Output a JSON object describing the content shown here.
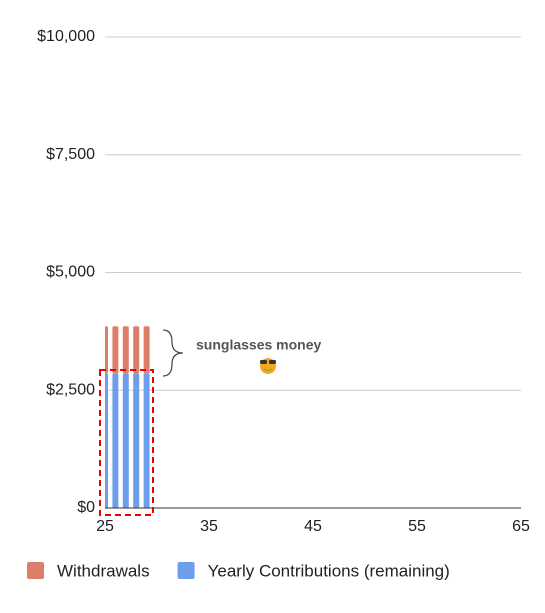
{
  "chart_data": {
    "type": "bar",
    "stacked": true,
    "annotation": "sunglasses money",
    "x": [
      25,
      26,
      27,
      28,
      29
    ],
    "series": [
      {
        "name": "Withdrawals",
        "color": "#dd7e6b",
        "values": [
          1000,
          1000,
          1000,
          1000,
          1000
        ]
      },
      {
        "name": "Yearly Contributions (remaining)",
        "color": "#6d9eeb",
        "values": [
          2860,
          2860,
          2860,
          2860,
          2860
        ]
      }
    ],
    "xlim": [
      25,
      65
    ],
    "xticks": [
      25,
      35,
      45,
      55,
      65
    ],
    "ylim": [
      0,
      10000
    ],
    "yticks": [
      {
        "value": 0,
        "label": "$0"
      },
      {
        "value": 2500,
        "label": "$2,500"
      },
      {
        "value": 5000,
        "label": "$5,000"
      },
      {
        "value": 7500,
        "label": "$7,500"
      },
      {
        "value": 10000,
        "label": "$10,000"
      }
    ],
    "grid": true,
    "legend": "bottom"
  }
}
